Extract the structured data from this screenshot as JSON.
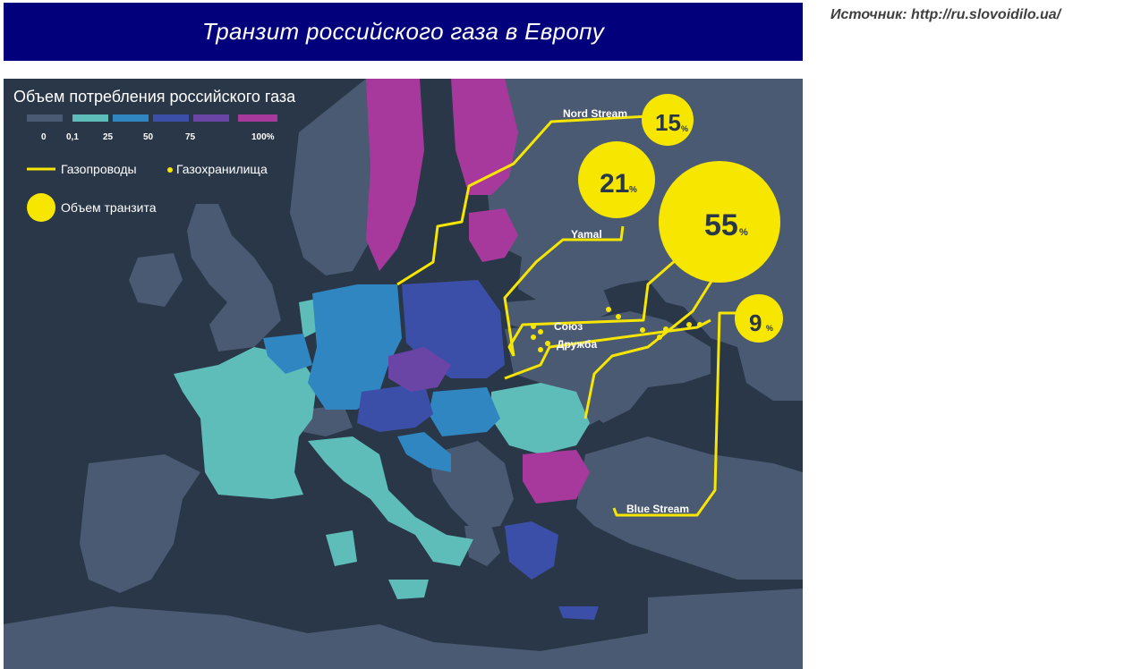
{
  "header": {
    "title": "Транзит российского газа в Европу"
  },
  "source": {
    "text": "Источник: http://ru.slovoidilo.ua/"
  },
  "legend": {
    "title": "Объем потребления российского газа",
    "scale": [
      {
        "label": "0",
        "color": "#4a5a73"
      },
      {
        "label": "0,1",
        "color": "#5ebdb8"
      },
      {
        "label": "25",
        "color": "#2f86c0"
      },
      {
        "label": "50",
        "color": "#3c4fa8"
      },
      {
        "label": "75",
        "color": "#6a45a6"
      },
      {
        "label": "100%",
        "color": "#a8399c"
      }
    ],
    "pipelines_label": "Газопроводы",
    "storage_label": "Газохранилища",
    "transit_label": "Объем транзита"
  },
  "pipelines": [
    {
      "name": "Nord Stream",
      "value": "15",
      "unit": "%"
    },
    {
      "name": "Yamal",
      "value": "21",
      "unit": "%"
    },
    {
      "name": "Союз",
      "value": "55",
      "unit": "%"
    },
    {
      "name": "Дружба",
      "value": "",
      "unit": ""
    },
    {
      "name": "Blue Stream",
      "value": "9",
      "unit": "%"
    }
  ],
  "colors": {
    "sea": "#2a3748",
    "land": "#4a5a73",
    "pipeline": "#f6e600",
    "banner": "#03007b"
  }
}
